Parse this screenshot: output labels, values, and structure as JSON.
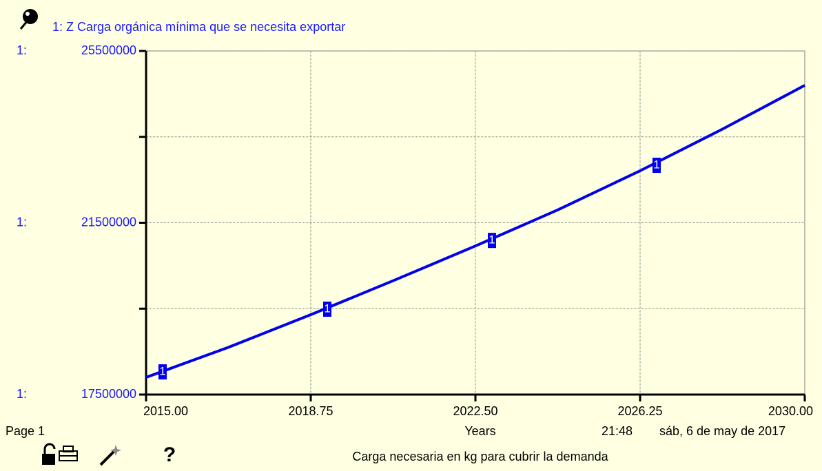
{
  "chart_data": {
    "type": "line",
    "title": "1: Z Carga orgánica mínima que se necesita exportar",
    "axis_series_label": "1:",
    "line_marker": "1",
    "x": [
      2015,
      2016.875,
      2018.75,
      2020.625,
      2022.5,
      2024.375,
      2026.25,
      2028.125,
      2030
    ],
    "series": [
      {
        "name": "1: Z Carga orgánica mínima que se necesita exportar",
        "color": "#0000ee",
        "values": [
          17900000,
          18600000,
          19360000,
          20150000,
          20960000,
          21800000,
          22710000,
          23680000,
          24700000
        ]
      }
    ],
    "xlim": [
      2015,
      2030
    ],
    "xticks": [
      {
        "value": 2015,
        "label": "2015.00"
      },
      {
        "value": 2018.75,
        "label": "2018.75"
      },
      {
        "value": 2022.5,
        "label": "2022.50"
      },
      {
        "value": 2026.25,
        "label": "2026.25"
      },
      {
        "value": 2030,
        "label": "2030.00"
      }
    ],
    "ylim": [
      17500000,
      25500000
    ],
    "yticks": [
      17500000,
      21500000,
      25500000
    ],
    "yminorticks": [
      19500000,
      23500000
    ],
    "grid": true,
    "xlabel": "Years",
    "page": "Page 1",
    "time": "21:48",
    "date": "sáb, 6 de may de 2017",
    "caption": "Carga necesaria en kg para cubrir la demanda"
  }
}
